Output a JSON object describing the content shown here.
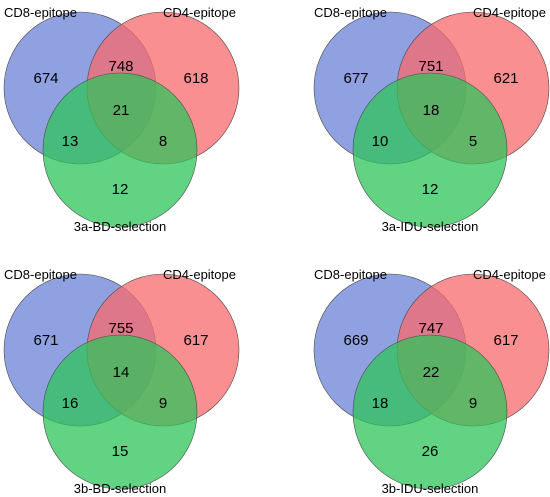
{
  "colors": {
    "cd8": "#6a82d6",
    "cd4": "#f86a6c",
    "selection": "#2ec45a",
    "outline": "#4a4a4a"
  },
  "venns": [
    {
      "set_labels": [
        "CD8-epitope",
        "CD4-epitope",
        "3a-BD-selection"
      ],
      "counts": {
        "only_cd8": "674",
        "cd8_cd4": "748",
        "only_cd4": "618",
        "all_three": "21",
        "cd8_sel": "13",
        "cd4_sel": "8",
        "only_sel": "12"
      }
    },
    {
      "set_labels": [
        "CD8-epitope",
        "CD4-epitope",
        "3a-IDU-selection"
      ],
      "counts": {
        "only_cd8": "677",
        "cd8_cd4": "751",
        "only_cd4": "621",
        "all_three": "18",
        "cd8_sel": "10",
        "cd4_sel": "5",
        "only_sel": "12"
      }
    },
    {
      "set_labels": [
        "CD8-epitope",
        "CD4-epitope",
        "3b-BD-selection"
      ],
      "counts": {
        "only_cd8": "671",
        "cd8_cd4": "755",
        "only_cd4": "617",
        "all_three": "14",
        "cd8_sel": "16",
        "cd4_sel": "9",
        "only_sel": "15"
      }
    },
    {
      "set_labels": [
        "CD8-epitope",
        "CD4-epitope",
        "3b-IDU-selection"
      ],
      "counts": {
        "only_cd8": "669",
        "cd8_cd4": "747",
        "only_cd4": "617",
        "all_three": "22",
        "cd8_sel": "18",
        "cd4_sel": "9",
        "only_sel": "26"
      }
    }
  ]
}
